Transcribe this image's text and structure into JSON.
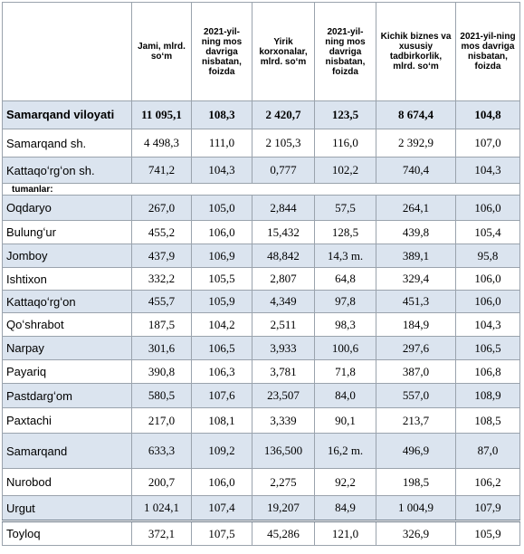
{
  "table": {
    "headers": [
      "Jami, mlrd. soʻm",
      "2021-yil-ning mos davriga nisbatan, foizda",
      "Yirik korxonalar, mlrd. soʻm",
      "2021-yil-ning mos davriga nisbatan, foizda",
      "Kichik biznes va xususiy tadbirkorlik, mlrd. soʻm",
      "2021-yil-ning mos davriga nisbatan, foizda"
    ],
    "rows": [
      {
        "name": "Samarqand viloyati",
        "values": [
          "11 095,1",
          "108,3",
          "2 420,7",
          "123,5",
          "8 674,4",
          "104,8"
        ]
      },
      {
        "name": "Samarqand sh.",
        "values": [
          "4 498,3",
          "111,0",
          "2 105,3",
          "116,0",
          "2 392,9",
          "107,0"
        ]
      },
      {
        "name": "Kattaqoʻrgʻon sh.",
        "values": [
          "741,2",
          "104,3",
          "0,777",
          "102,2",
          "740,4",
          "104,3"
        ]
      },
      {
        "name": "tumanlar:"
      },
      {
        "name": "Oqdaryo",
        "values": [
          "267,0",
          "105,0",
          "2,844",
          "57,5",
          "264,1",
          "106,0"
        ]
      },
      {
        "name": "Bulungʻur",
        "values": [
          "455,2",
          "106,0",
          "15,432",
          "128,5",
          "439,8",
          "105,4"
        ]
      },
      {
        "name": "Jomboy",
        "values": [
          "437,9",
          "106,9",
          "48,842",
          "14,3 m.",
          "389,1",
          "95,8"
        ]
      },
      {
        "name": "Ishtixon",
        "values": [
          "332,2",
          "105,5",
          "2,807",
          "64,8",
          "329,4",
          "106,0"
        ]
      },
      {
        "name": "Kattaqoʻrgʻon",
        "values": [
          "455,7",
          "105,9",
          "4,349",
          "97,8",
          "451,3",
          "106,0"
        ]
      },
      {
        "name": "Qoʻshrabot",
        "values": [
          "187,5",
          "104,2",
          "2,511",
          "98,3",
          "184,9",
          "104,3"
        ]
      },
      {
        "name": "Narpay",
        "values": [
          "301,6",
          "106,5",
          "3,933",
          "100,6",
          "297,6",
          "106,5"
        ]
      },
      {
        "name": "Payariq",
        "values": [
          "390,8",
          "106,3",
          "3,781",
          "71,8",
          "387,0",
          "106,8"
        ]
      },
      {
        "name": "Pastdargʻom",
        "values": [
          "580,5",
          "107,6",
          "23,507",
          "84,0",
          "557,0",
          "108,9"
        ]
      },
      {
        "name": "Paxtachi",
        "values": [
          "217,0",
          "108,1",
          "3,339",
          "90,1",
          "213,7",
          "108,5"
        ]
      },
      {
        "name": "Samarqand",
        "values": [
          "633,3",
          "109,2",
          "136,500",
          "16,2 m.",
          "496,9",
          "87,0"
        ]
      },
      {
        "name": "Nurobod",
        "values": [
          "200,7",
          "106,0",
          "2,275",
          "92,2",
          "198,5",
          "106,2"
        ]
      },
      {
        "name": "Urgut",
        "values": [
          "1 024,1",
          "107,4",
          "19,207",
          "84,9",
          "1 004,9",
          "107,9"
        ]
      },
      {
        "name": "Toyloq",
        "values": [
          "372,1",
          "107,5",
          "45,286",
          "121,0",
          "326,9",
          "105,9"
        ]
      }
    ]
  }
}
